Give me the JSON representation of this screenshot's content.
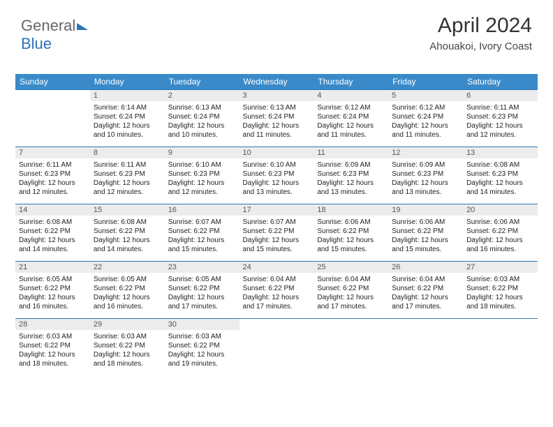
{
  "brand": {
    "part1": "General",
    "part2": "Blue"
  },
  "header": {
    "month_title": "April 2024",
    "location": "Ahouakoi, Ivory Coast"
  },
  "colors": {
    "header_bg": "#3a8ac9",
    "row_border": "#2e72b8",
    "daynum_bg": "#ececec",
    "brand_blue": "#2e72b8"
  },
  "daynames": [
    "Sunday",
    "Monday",
    "Tuesday",
    "Wednesday",
    "Thursday",
    "Friday",
    "Saturday"
  ],
  "calendar": {
    "type": "table",
    "columns": 7,
    "first_day_index": 1,
    "days": [
      {
        "n": 1,
        "sr": "6:14 AM",
        "ss": "6:24 PM",
        "dl": "12 hours and 10 minutes."
      },
      {
        "n": 2,
        "sr": "6:13 AM",
        "ss": "6:24 PM",
        "dl": "12 hours and 10 minutes."
      },
      {
        "n": 3,
        "sr": "6:13 AM",
        "ss": "6:24 PM",
        "dl": "12 hours and 11 minutes."
      },
      {
        "n": 4,
        "sr": "6:12 AM",
        "ss": "6:24 PM",
        "dl": "12 hours and 11 minutes."
      },
      {
        "n": 5,
        "sr": "6:12 AM",
        "ss": "6:24 PM",
        "dl": "12 hours and 11 minutes."
      },
      {
        "n": 6,
        "sr": "6:11 AM",
        "ss": "6:23 PM",
        "dl": "12 hours and 12 minutes."
      },
      {
        "n": 7,
        "sr": "6:11 AM",
        "ss": "6:23 PM",
        "dl": "12 hours and 12 minutes."
      },
      {
        "n": 8,
        "sr": "6:11 AM",
        "ss": "6:23 PM",
        "dl": "12 hours and 12 minutes."
      },
      {
        "n": 9,
        "sr": "6:10 AM",
        "ss": "6:23 PM",
        "dl": "12 hours and 12 minutes."
      },
      {
        "n": 10,
        "sr": "6:10 AM",
        "ss": "6:23 PM",
        "dl": "12 hours and 13 minutes."
      },
      {
        "n": 11,
        "sr": "6:09 AM",
        "ss": "6:23 PM",
        "dl": "12 hours and 13 minutes."
      },
      {
        "n": 12,
        "sr": "6:09 AM",
        "ss": "6:23 PM",
        "dl": "12 hours and 13 minutes."
      },
      {
        "n": 13,
        "sr": "6:08 AM",
        "ss": "6:23 PM",
        "dl": "12 hours and 14 minutes."
      },
      {
        "n": 14,
        "sr": "6:08 AM",
        "ss": "6:22 PM",
        "dl": "12 hours and 14 minutes."
      },
      {
        "n": 15,
        "sr": "6:08 AM",
        "ss": "6:22 PM",
        "dl": "12 hours and 14 minutes."
      },
      {
        "n": 16,
        "sr": "6:07 AM",
        "ss": "6:22 PM",
        "dl": "12 hours and 15 minutes."
      },
      {
        "n": 17,
        "sr": "6:07 AM",
        "ss": "6:22 PM",
        "dl": "12 hours and 15 minutes."
      },
      {
        "n": 18,
        "sr": "6:06 AM",
        "ss": "6:22 PM",
        "dl": "12 hours and 15 minutes."
      },
      {
        "n": 19,
        "sr": "6:06 AM",
        "ss": "6:22 PM",
        "dl": "12 hours and 15 minutes."
      },
      {
        "n": 20,
        "sr": "6:06 AM",
        "ss": "6:22 PM",
        "dl": "12 hours and 16 minutes."
      },
      {
        "n": 21,
        "sr": "6:05 AM",
        "ss": "6:22 PM",
        "dl": "12 hours and 16 minutes."
      },
      {
        "n": 22,
        "sr": "6:05 AM",
        "ss": "6:22 PM",
        "dl": "12 hours and 16 minutes."
      },
      {
        "n": 23,
        "sr": "6:05 AM",
        "ss": "6:22 PM",
        "dl": "12 hours and 17 minutes."
      },
      {
        "n": 24,
        "sr": "6:04 AM",
        "ss": "6:22 PM",
        "dl": "12 hours and 17 minutes."
      },
      {
        "n": 25,
        "sr": "6:04 AM",
        "ss": "6:22 PM",
        "dl": "12 hours and 17 minutes."
      },
      {
        "n": 26,
        "sr": "6:04 AM",
        "ss": "6:22 PM",
        "dl": "12 hours and 17 minutes."
      },
      {
        "n": 27,
        "sr": "6:03 AM",
        "ss": "6:22 PM",
        "dl": "12 hours and 18 minutes."
      },
      {
        "n": 28,
        "sr": "6:03 AM",
        "ss": "6:22 PM",
        "dl": "12 hours and 18 minutes."
      },
      {
        "n": 29,
        "sr": "6:03 AM",
        "ss": "6:22 PM",
        "dl": "12 hours and 18 minutes."
      },
      {
        "n": 30,
        "sr": "6:03 AM",
        "ss": "6:22 PM",
        "dl": "12 hours and 19 minutes."
      }
    ]
  },
  "labels": {
    "sunrise": "Sunrise: ",
    "sunset": "Sunset: ",
    "daylight": "Daylight: "
  }
}
